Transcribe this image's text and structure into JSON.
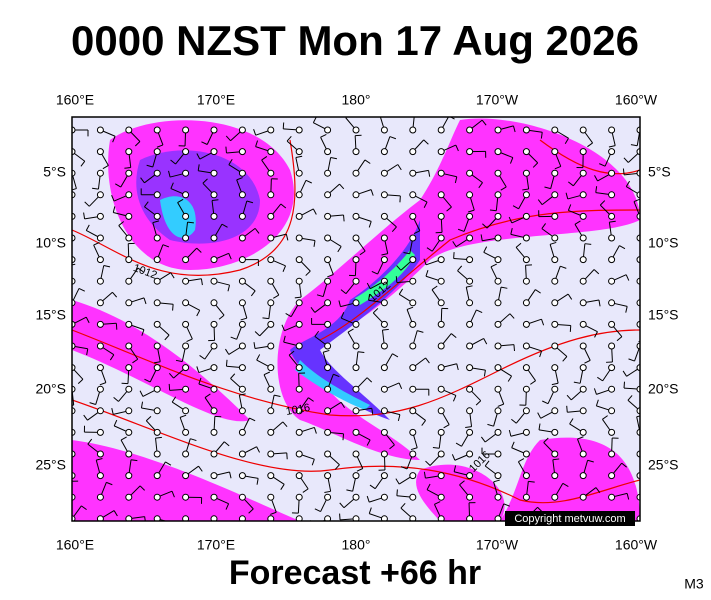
{
  "header": {
    "title": "0000 NZST Mon 17 Aug 2026"
  },
  "map": {
    "lon_labels": [
      "160°E",
      "170°E",
      "180°",
      "170°W",
      "160°W"
    ],
    "lat_labels": [
      "5°S",
      "10°S",
      "15°S",
      "20°S",
      "25°S"
    ],
    "isobar_labels": [
      "1012",
      "1012",
      "1016",
      "1016"
    ],
    "copyright": "Copyright metvuw.com"
  },
  "footer": {
    "forecast": "Forecast +66 hr",
    "code": "M3"
  }
}
